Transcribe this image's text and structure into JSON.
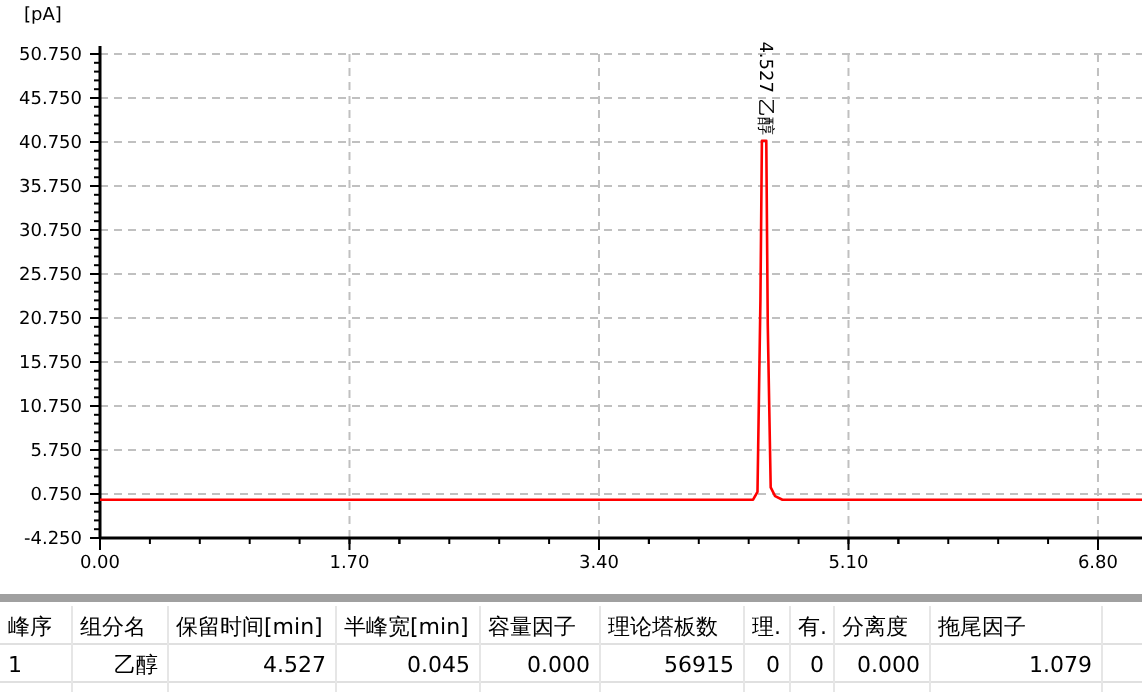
{
  "chart_data": {
    "type": "line",
    "ylabel": "[pA]",
    "x": [
      0,
      4.45,
      4.48,
      4.5,
      4.51,
      4.54,
      4.55,
      4.57,
      4.6,
      4.65,
      7.1
    ],
    "series": [
      {
        "color": "#ff0000",
        "values": [
          0.1,
          0.1,
          1,
          22.8,
          40.9,
          40.9,
          20,
          1.5,
          0.5,
          0.1,
          0.1
        ]
      }
    ],
    "xlim": [
      0,
      7.1
    ],
    "ylim": [
      -4.25,
      50.75
    ],
    "xticks": [
      {
        "value": 0,
        "label": "0.00"
      },
      {
        "value": 1.7,
        "label": "1.70"
      },
      {
        "value": 3.4,
        "label": "3.40"
      },
      {
        "value": 5.1,
        "label": "5.10"
      },
      {
        "value": 6.8,
        "label": "6.80"
      }
    ],
    "yticks": [
      {
        "value": -4.25,
        "label": "-4.250"
      },
      {
        "value": 0.75,
        "label": "0.750"
      },
      {
        "value": 5.75,
        "label": "5.750"
      },
      {
        "value": 10.75,
        "label": "10.750"
      },
      {
        "value": 15.75,
        "label": "15.750"
      },
      {
        "value": 20.75,
        "label": "20.750"
      },
      {
        "value": 25.75,
        "label": "25.750"
      },
      {
        "value": 30.75,
        "label": "30.750"
      },
      {
        "value": 35.75,
        "label": "35.750"
      },
      {
        "value": 40.75,
        "label": "40.750"
      },
      {
        "value": 45.75,
        "label": "45.750"
      },
      {
        "value": 50.75,
        "label": "50.750"
      }
    ],
    "grid": true,
    "marker": "none",
    "line_style": "solid",
    "annotations": [
      {
        "text": "4.527 乙醇",
        "x": 4.527,
        "y": 40.9
      },
      "峰序",
      "组分名",
      "保留时间[min]",
      "半峰宽[min]",
      "容量因子",
      "理论塔板数",
      "理.",
      "有.",
      "分离度",
      "拖尾因子",
      "1",
      "乙醇",
      "4.527",
      "0.045",
      "0.000",
      "56915",
      "0",
      "0",
      "0.000",
      "1.079"
    ]
  }
}
